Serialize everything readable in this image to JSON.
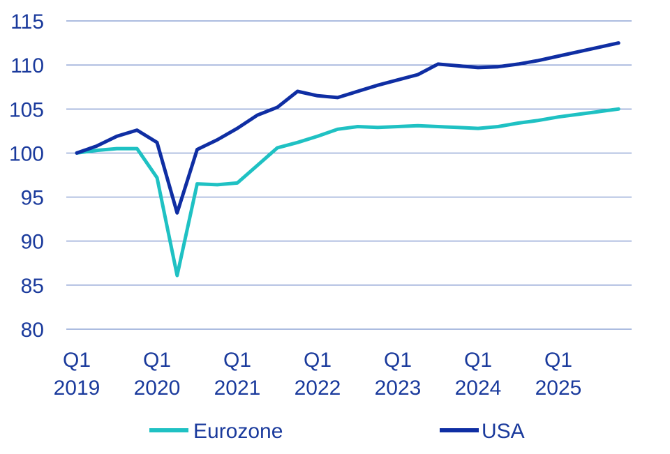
{
  "chart_data": {
    "type": "line",
    "title": "",
    "xlabel": "",
    "ylabel": "",
    "ylim": [
      80,
      115
    ],
    "yticks": [
      80,
      85,
      90,
      95,
      100,
      105,
      110,
      115
    ],
    "grid": true,
    "legend_position": "bottom",
    "x_start": "2019 Q1",
    "x_tick_labels": [
      {
        "line1": "Q1",
        "line2": "2019",
        "index": 0
      },
      {
        "line1": "Q1",
        "line2": "2020",
        "index": 4
      },
      {
        "line1": "Q1",
        "line2": "2021",
        "index": 8
      },
      {
        "line1": "Q1",
        "line2": "2022",
        "index": 12
      },
      {
        "line1": "Q1",
        "line2": "2023",
        "index": 16
      },
      {
        "line1": "Q1",
        "line2": "2024",
        "index": 20
      },
      {
        "line1": "Q1",
        "line2": "2025",
        "index": 24
      }
    ],
    "series": [
      {
        "name": "Eurozone",
        "color": "#1fc1c3",
        "values": [
          100.0,
          100.3,
          100.5,
          100.5,
          97.2,
          86.1,
          96.5,
          96.4,
          96.6,
          98.6,
          100.6,
          101.2,
          101.9,
          102.7,
          103.0,
          102.9,
          103.0,
          103.1,
          103.0,
          102.9,
          102.8,
          103.0,
          103.4,
          103.7,
          104.1,
          104.4,
          104.7,
          105.0
        ]
      },
      {
        "name": "USA",
        "color": "#0f2ea3",
        "values": [
          100.0,
          100.8,
          101.9,
          102.6,
          101.2,
          93.2,
          100.4,
          101.5,
          102.8,
          104.3,
          105.2,
          107.0,
          106.5,
          106.3,
          107.0,
          107.7,
          108.3,
          108.9,
          110.1,
          109.9,
          109.7,
          109.8,
          110.1,
          110.5,
          111.0,
          111.5,
          112.0,
          112.5
        ]
      }
    ]
  }
}
